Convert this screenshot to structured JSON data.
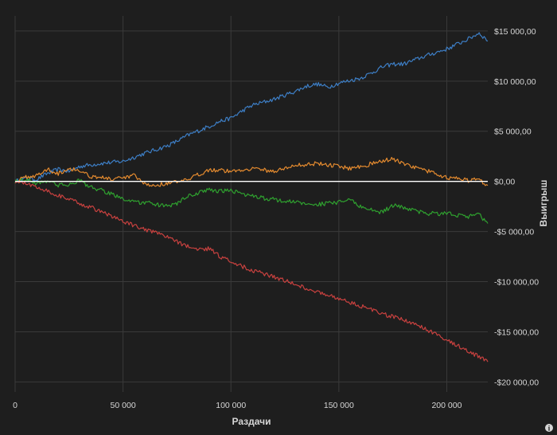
{
  "chart_data": {
    "type": "line",
    "xlabel": "Раздачи",
    "ylabel": "Выигрыш",
    "xlim": [
      0,
      219000
    ],
    "ylim": [
      -21000,
      16500
    ],
    "x_ticks": [
      0,
      50000,
      100000,
      150000,
      200000
    ],
    "x_tick_labels": [
      "0",
      "50 000",
      "100 000",
      "150 000",
      "200 000"
    ],
    "y_ticks": [
      15000,
      10000,
      5000,
      0,
      -5000,
      -10000,
      -15000,
      -20000
    ],
    "y_tick_labels": [
      "$15 000,00",
      "$10 000,00",
      "$5 000,00",
      "$0,00",
      "-$5 000,00",
      "-$10 000,00",
      "-$15 000,00",
      "-$20 000,00"
    ],
    "grid": true,
    "series": [
      {
        "color": "#3d7ec5",
        "x": [
          0,
          5000,
          10000,
          15000,
          20000,
          25000,
          30000,
          40000,
          50000,
          60000,
          70000,
          75000,
          80000,
          90000,
          95000,
          100000,
          105000,
          110000,
          120000,
          130000,
          135000,
          140000,
          145000,
          150000,
          160000,
          165000,
          170000,
          175000,
          180000,
          190000,
          200000,
          210000,
          215000,
          219000
        ],
        "values": [
          0,
          300,
          200,
          800,
          1200,
          1000,
          1500,
          1800,
          2000,
          2800,
          3500,
          4000,
          4600,
          5500,
          6000,
          6300,
          7000,
          7600,
          8200,
          9000,
          9500,
          9700,
          9400,
          9800,
          10300,
          10800,
          11400,
          11700,
          11700,
          12500,
          13200,
          14200,
          14800,
          14000
        ]
      },
      {
        "color": "#e58b2f",
        "x": [
          0,
          5000,
          10000,
          15000,
          20000,
          25000,
          30000,
          35000,
          40000,
          45000,
          50000,
          55000,
          60000,
          65000,
          70000,
          80000,
          85000,
          90000,
          100000,
          110000,
          120000,
          130000,
          140000,
          150000,
          155000,
          160000,
          170000,
          175000,
          180000,
          190000,
          200000,
          210000,
          215000,
          219000
        ],
        "values": [
          0,
          400,
          600,
          1200,
          800,
          1300,
          1100,
          500,
          400,
          200,
          300,
          600,
          -300,
          -400,
          -200,
          100,
          700,
          1200,
          1000,
          1300,
          1000,
          1600,
          1800,
          1500,
          1300,
          1500,
          2000,
          2300,
          1700,
          1100,
          400,
          100,
          200,
          -400
        ]
      },
      {
        "color": "#2fa12f",
        "x": [
          0,
          5000,
          10000,
          15000,
          20000,
          25000,
          30000,
          35000,
          40000,
          50000,
          55000,
          60000,
          65000,
          70000,
          75000,
          80000,
          90000,
          95000,
          100000,
          110000,
          120000,
          130000,
          140000,
          150000,
          155000,
          160000,
          170000,
          175000,
          180000,
          190000,
          200000,
          210000,
          215000,
          219000
        ],
        "values": [
          0,
          200,
          -200,
          100,
          -400,
          -300,
          100,
          -600,
          -900,
          -1700,
          -2100,
          -2100,
          -2300,
          -2500,
          -2200,
          -1500,
          -800,
          -1000,
          -900,
          -1500,
          -1800,
          -2100,
          -2300,
          -2100,
          -1800,
          -2500,
          -3100,
          -2400,
          -2600,
          -3200,
          -3200,
          -3500,
          -3300,
          -4200
        ]
      },
      {
        "color": "#c8413f",
        "x": [
          0,
          10000,
          20000,
          30000,
          40000,
          50000,
          60000,
          70000,
          80000,
          85000,
          90000,
          95000,
          100000,
          110000,
          120000,
          130000,
          140000,
          150000,
          160000,
          170000,
          180000,
          185000,
          190000,
          200000,
          210000,
          219000
        ],
        "values": [
          0,
          -500,
          -1400,
          -2200,
          -3000,
          -4000,
          -4800,
          -5500,
          -6500,
          -6800,
          -6700,
          -7500,
          -8000,
          -8900,
          -9500,
          -10300,
          -11000,
          -11700,
          -12400,
          -13200,
          -13800,
          -14200,
          -14700,
          -15800,
          -16900,
          -18000
        ]
      },
      {
        "color": "#ffffff",
        "x": [
          0,
          219000
        ],
        "values": [
          0,
          0
        ]
      }
    ]
  },
  "ui": {
    "info_icon": "info-icon"
  }
}
